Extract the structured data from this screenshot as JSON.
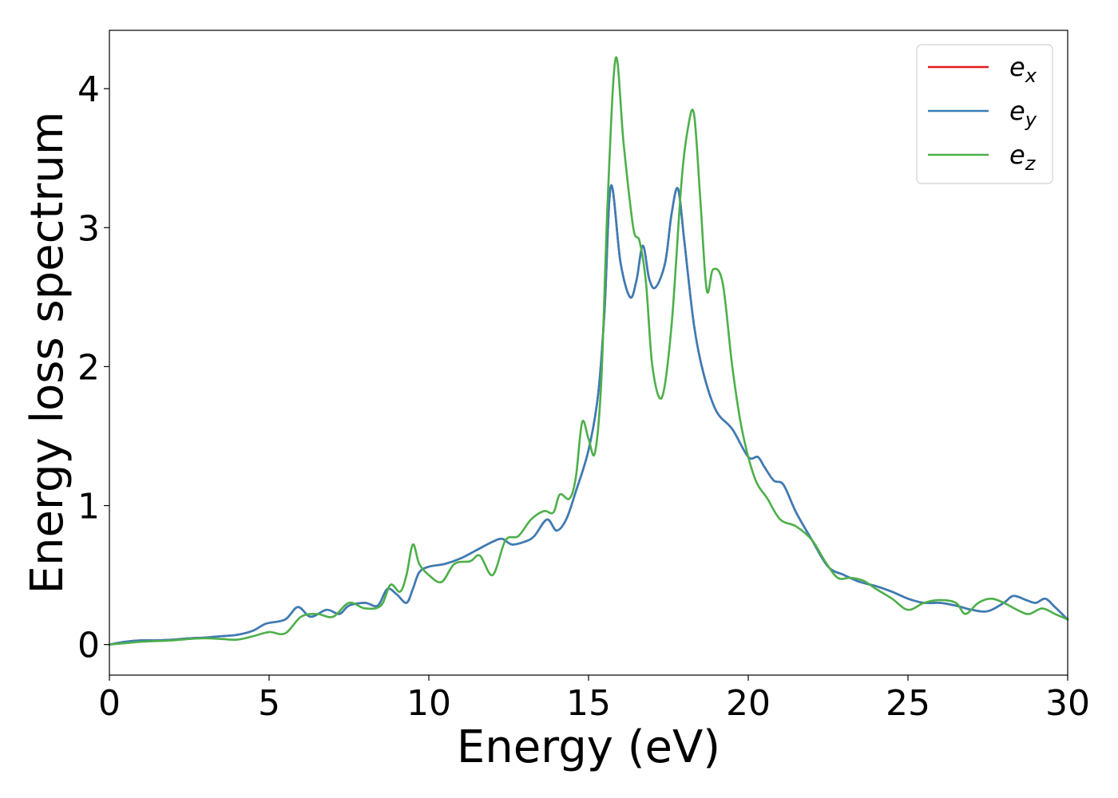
{
  "chart_data": {
    "type": "line",
    "title": "",
    "xlabel": "Energy (eV)",
    "ylabel": "Energy loss spectrum",
    "xlim": [
      0,
      30
    ],
    "ylim": [
      -0.22,
      4.42
    ],
    "xticks": [
      0,
      5,
      10,
      15,
      20,
      25,
      30
    ],
    "xtick_labels": [
      "0",
      "5",
      "10",
      "15",
      "20",
      "25",
      "30"
    ],
    "yticks": [
      0,
      1,
      2,
      3,
      4
    ],
    "ytick_labels": [
      "0",
      "1",
      "2",
      "3",
      "4"
    ],
    "grid": false,
    "legend_position": "top-right",
    "series": [
      {
        "name": "ex",
        "legend_base": "e",
        "legend_sub": "x",
        "color": "#e41a1c",
        "x": [
          0,
          0.5,
          1,
          1.5,
          2,
          2.5,
          3,
          3.5,
          4,
          4.5,
          4.9,
          5.5,
          5.9,
          6.3,
          6.8,
          7.2,
          7.5,
          8,
          8.4,
          8.7,
          9,
          9.3,
          9.5,
          9.7,
          10,
          10.5,
          11,
          11.5,
          12,
          12.3,
          12.6,
          13,
          13.3,
          13.7,
          14,
          14.3,
          14.6,
          15,
          15.3,
          15.5,
          15.7,
          16,
          16.3,
          16.5,
          16.7,
          16.9,
          17.1,
          17.4,
          17.6,
          17.8,
          18,
          18.3,
          18.6,
          19,
          19.5,
          20,
          20.3,
          20.5,
          20.8,
          21.1,
          21.5,
          22,
          22.5,
          23,
          23.5,
          24,
          24.5,
          25,
          25.5,
          26,
          26.5,
          27,
          27.5,
          28,
          28.3,
          28.7,
          29,
          29.3,
          29.6,
          30
        ],
        "y": [
          0,
          0.02,
          0.03,
          0.03,
          0.035,
          0.045,
          0.05,
          0.06,
          0.07,
          0.1,
          0.15,
          0.18,
          0.27,
          0.2,
          0.25,
          0.22,
          0.28,
          0.3,
          0.28,
          0.4,
          0.36,
          0.3,
          0.4,
          0.52,
          0.56,
          0.58,
          0.62,
          0.68,
          0.74,
          0.76,
          0.72,
          0.74,
          0.78,
          0.9,
          0.82,
          0.9,
          1.1,
          1.4,
          1.8,
          2.4,
          3.3,
          2.75,
          2.5,
          2.62,
          2.87,
          2.63,
          2.57,
          2.75,
          3.1,
          3.28,
          2.9,
          2.3,
          1.95,
          1.68,
          1.55,
          1.35,
          1.35,
          1.28,
          1.18,
          1.15,
          0.95,
          0.75,
          0.56,
          0.5,
          0.45,
          0.42,
          0.38,
          0.33,
          0.3,
          0.3,
          0.28,
          0.25,
          0.24,
          0.3,
          0.35,
          0.32,
          0.3,
          0.33,
          0.27,
          0.18
        ]
      },
      {
        "name": "ey",
        "legend_base": "e",
        "legend_sub": "y",
        "color": "#377eb8",
        "x": [
          0,
          0.5,
          1,
          1.5,
          2,
          2.5,
          3,
          3.5,
          4,
          4.5,
          4.9,
          5.5,
          5.9,
          6.3,
          6.8,
          7.2,
          7.5,
          8,
          8.4,
          8.7,
          9,
          9.3,
          9.5,
          9.7,
          10,
          10.5,
          11,
          11.5,
          12,
          12.3,
          12.6,
          13,
          13.3,
          13.7,
          14,
          14.3,
          14.6,
          15,
          15.3,
          15.5,
          15.7,
          16,
          16.3,
          16.5,
          16.7,
          16.9,
          17.1,
          17.4,
          17.6,
          17.8,
          18,
          18.3,
          18.6,
          19,
          19.5,
          20,
          20.3,
          20.5,
          20.8,
          21.1,
          21.5,
          22,
          22.5,
          23,
          23.5,
          24,
          24.5,
          25,
          25.5,
          26,
          26.5,
          27,
          27.5,
          28,
          28.3,
          28.7,
          29,
          29.3,
          29.6,
          30
        ],
        "y": [
          0,
          0.02,
          0.03,
          0.03,
          0.035,
          0.045,
          0.05,
          0.06,
          0.07,
          0.1,
          0.15,
          0.18,
          0.27,
          0.2,
          0.25,
          0.22,
          0.28,
          0.3,
          0.28,
          0.4,
          0.36,
          0.3,
          0.4,
          0.52,
          0.56,
          0.58,
          0.62,
          0.68,
          0.74,
          0.76,
          0.72,
          0.74,
          0.78,
          0.9,
          0.82,
          0.9,
          1.1,
          1.4,
          1.8,
          2.4,
          3.3,
          2.75,
          2.5,
          2.62,
          2.87,
          2.63,
          2.57,
          2.75,
          3.1,
          3.28,
          2.9,
          2.3,
          1.95,
          1.68,
          1.55,
          1.35,
          1.35,
          1.28,
          1.18,
          1.15,
          0.95,
          0.75,
          0.56,
          0.5,
          0.45,
          0.42,
          0.38,
          0.33,
          0.3,
          0.3,
          0.28,
          0.25,
          0.24,
          0.3,
          0.35,
          0.32,
          0.3,
          0.33,
          0.27,
          0.18
        ]
      },
      {
        "name": "ez",
        "legend_base": "e",
        "legend_sub": "z",
        "color": "#4daf4a",
        "x": [
          0,
          0.5,
          1,
          1.5,
          2,
          2.5,
          3,
          3.5,
          4,
          4.5,
          5,
          5.5,
          6,
          6.5,
          7,
          7.5,
          8,
          8.5,
          8.8,
          9.1,
          9.3,
          9.5,
          9.7,
          10,
          10.4,
          10.8,
          11.3,
          11.6,
          12,
          12.4,
          12.8,
          13.2,
          13.6,
          13.9,
          14.1,
          14.4,
          14.6,
          14.8,
          15,
          15.2,
          15.4,
          15.6,
          15.85,
          16.1,
          16.4,
          16.6,
          16.8,
          17,
          17.3,
          17.6,
          17.9,
          18.1,
          18.3,
          18.5,
          18.7,
          18.9,
          19.2,
          19.5,
          19.8,
          20.2,
          20.6,
          21,
          21.5,
          22,
          22.4,
          22.8,
          23.2,
          23.6,
          24,
          24.5,
          25,
          25.5,
          26,
          26.5,
          26.8,
          27.2,
          27.6,
          28,
          28.5,
          28.8,
          29.2,
          29.6,
          30
        ],
        "y": [
          0,
          0.01,
          0.02,
          0.025,
          0.03,
          0.04,
          0.045,
          0.04,
          0.035,
          0.06,
          0.09,
          0.08,
          0.2,
          0.22,
          0.2,
          0.3,
          0.26,
          0.28,
          0.43,
          0.38,
          0.5,
          0.72,
          0.58,
          0.5,
          0.45,
          0.58,
          0.6,
          0.64,
          0.5,
          0.75,
          0.78,
          0.9,
          0.96,
          0.95,
          1.08,
          1.05,
          1.2,
          1.6,
          1.48,
          1.38,
          1.9,
          3.2,
          4.22,
          3.6,
          3.0,
          2.9,
          2.6,
          2.0,
          1.78,
          2.3,
          3.3,
          3.7,
          3.82,
          3.2,
          2.55,
          2.7,
          2.6,
          2.0,
          1.55,
          1.2,
          1.05,
          0.9,
          0.85,
          0.75,
          0.6,
          0.48,
          0.48,
          0.46,
          0.4,
          0.33,
          0.25,
          0.3,
          0.32,
          0.3,
          0.22,
          0.3,
          0.33,
          0.3,
          0.24,
          0.22,
          0.26,
          0.22,
          0.18
        ]
      }
    ]
  }
}
